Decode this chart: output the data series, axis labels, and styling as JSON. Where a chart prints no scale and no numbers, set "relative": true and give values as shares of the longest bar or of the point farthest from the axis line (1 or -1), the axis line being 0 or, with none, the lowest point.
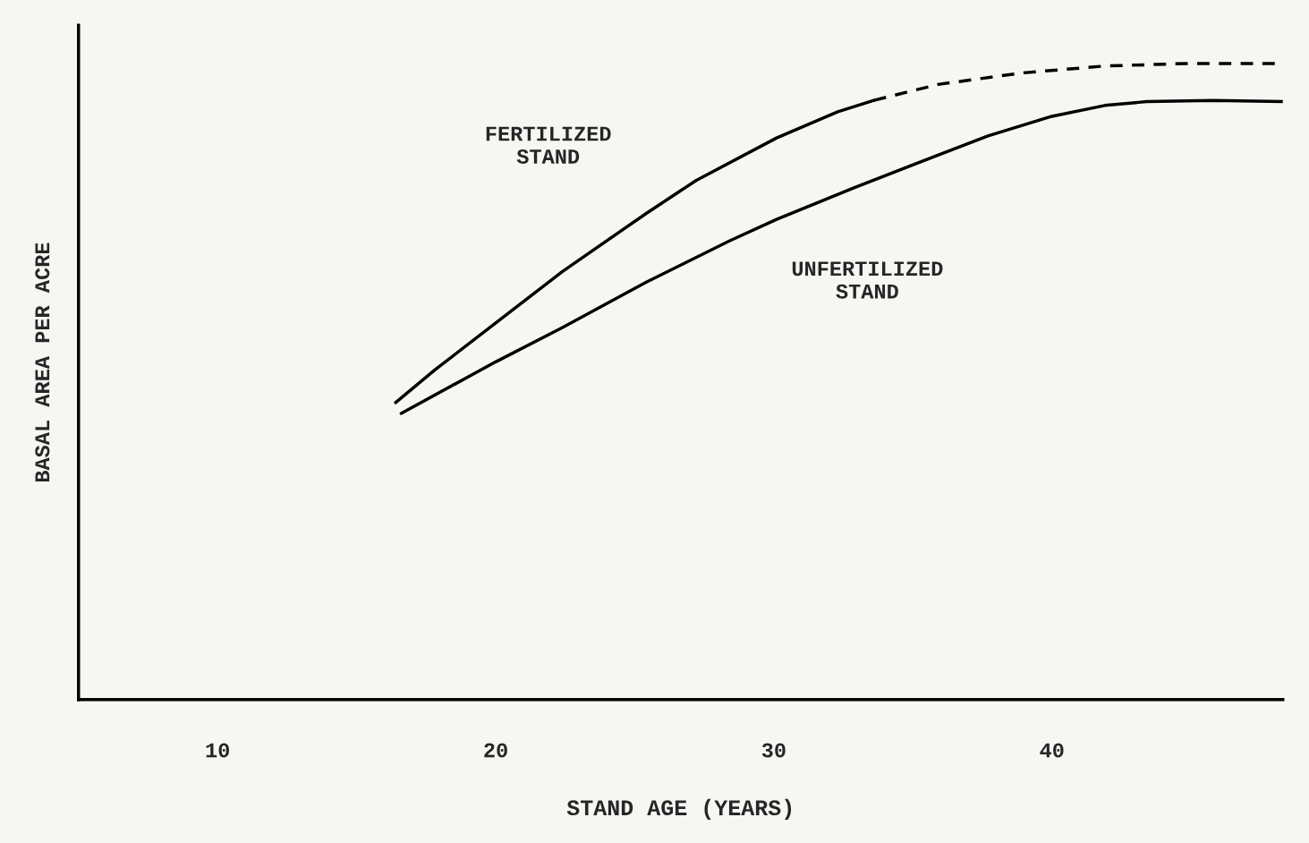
{
  "chart_data": {
    "type": "line",
    "relative": true,
    "xlabel": "STAND AGE (YEARS)",
    "ylabel": "BASAL AREA PER ACRE",
    "xlim": [
      5,
      48.3
    ],
    "xticks": [
      10,
      20,
      30,
      40
    ],
    "grid": false,
    "legend": false,
    "series": [
      {
        "color": "#000000",
        "line_style": "solid",
        "x": [
          16.4,
          17.8,
          20.0,
          22.4,
          25.4,
          27.2,
          30.1,
          32.3,
          33.6
        ],
        "values": [
          0.467,
          0.518,
          0.592,
          0.673,
          0.764,
          0.816,
          0.883,
          0.924,
          0.942
        ]
      },
      {
        "color": "#000000",
        "line_style": "dashed",
        "x": [
          33.6,
          35.9,
          38.9,
          41.9,
          44.9,
          48.3
        ],
        "values": [
          0.942,
          0.967,
          0.985,
          0.996,
          1,
          1
        ]
      },
      {
        "color": "#000000",
        "line_style": "solid",
        "x": [
          16.6,
          20.0,
          22.4,
          25.4,
          28.4,
          30.1,
          32.9,
          35.9,
          37.7,
          40.0,
          41.9,
          43.4,
          45.8,
          48.3
        ],
        "values": [
          0.45,
          0.531,
          0.585,
          0.656,
          0.721,
          0.755,
          0.805,
          0.856,
          0.886,
          0.917,
          0.934,
          0.94,
          0.942,
          0.94
        ]
      }
    ],
    "annotations": [
      "FERTILIZED\nSTAND",
      "UNFERTILIZED\nSTAND"
    ]
  }
}
